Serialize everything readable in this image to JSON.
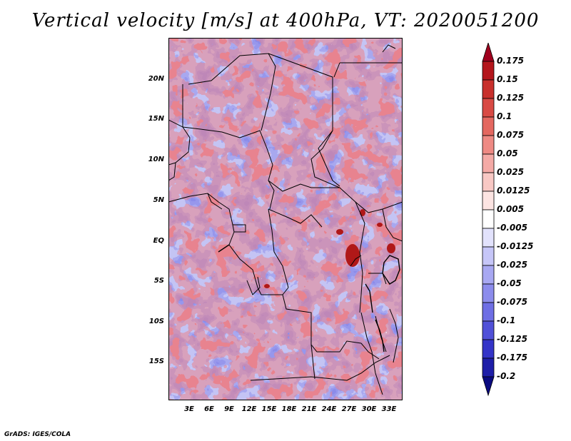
{
  "title": "Vertical velocity [m/s] at 400hPa, VT: 2020051200",
  "footer": "GrADS: IGES/COLA",
  "map": {
    "lat_labels": [
      "20N",
      "15N",
      "10N",
      "5N",
      "EQ",
      "5S",
      "10S",
      "15S"
    ],
    "lon_labels": [
      "3E",
      "6E",
      "9E",
      "12E",
      "15E",
      "18E",
      "21E",
      "24E",
      "27E",
      "30E",
      "33E"
    ],
    "lat_range": [
      -19.5,
      25
    ],
    "lon_range": [
      0,
      35
    ]
  },
  "colorbar": {
    "labels": [
      "0.175",
      "0.15",
      "0.125",
      "0.1",
      "0.075",
      "0.05",
      "0.025",
      "0.0125",
      "0.005",
      "-0.005",
      "-0.0125",
      "-0.025",
      "-0.05",
      "-0.075",
      "-0.1",
      "-0.125",
      "-0.175",
      "-0.2"
    ],
    "colors": [
      "#a0001e",
      "#b4161c",
      "#c8302c",
      "#d84a44",
      "#e46860",
      "#ee8a84",
      "#f4aaa6",
      "#f8c8c4",
      "#fce4e2",
      "#ffffff",
      "#e2e2fc",
      "#c6c6f8",
      "#a8a8f2",
      "#8c8cec",
      "#6e6ee4",
      "#5050d8",
      "#3434c8",
      "#1e1ea8",
      "#0a0a80"
    ]
  }
}
